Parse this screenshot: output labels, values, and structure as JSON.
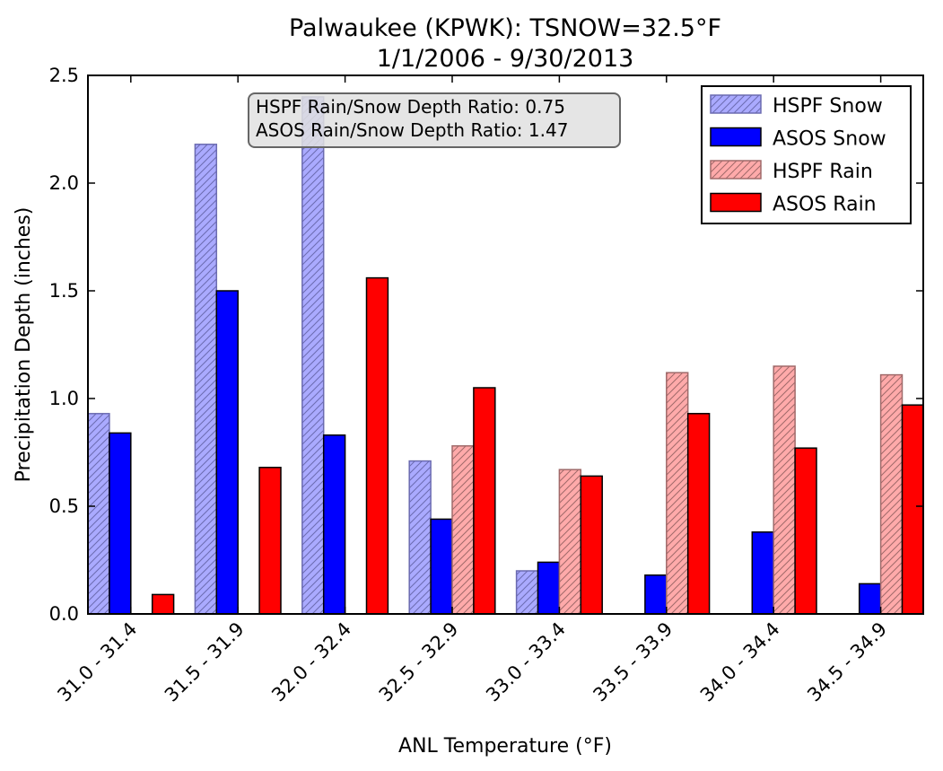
{
  "chart_data": {
    "type": "bar",
    "title": "Palwaukee (KPWK): TSNOW=32.5°F",
    "subtitle": "1/1/2006 - 9/30/2013",
    "xlabel": "ANL Temperature (°F)",
    "ylabel": "Precipitation Depth (inches)",
    "ylim": [
      0,
      2.5
    ],
    "yticks": [
      "0.0",
      "0.5",
      "1.0",
      "1.5",
      "2.0",
      "2.5"
    ],
    "categories": [
      "31.0 - 31.4",
      "31.5 - 31.9",
      "32.0 - 32.4",
      "32.5 - 32.9",
      "33.0 - 33.4",
      "33.5 - 33.9",
      "34.0 - 34.4",
      "34.5 - 34.9"
    ],
    "series": [
      {
        "name": "HSPF Snow",
        "color": "#aaaaff",
        "stroke": "#6b6bb0",
        "hatch": true,
        "values": [
          0.93,
          2.18,
          2.4,
          0.71,
          0.2,
          0,
          0,
          0
        ]
      },
      {
        "name": "ASOS Snow",
        "color": "#0000ff",
        "stroke": "#000000",
        "hatch": false,
        "values": [
          0.84,
          1.5,
          0.83,
          0.44,
          0.24,
          0.18,
          0.38,
          0.14
        ]
      },
      {
        "name": "HSPF Rain",
        "color": "#ffaaaa",
        "stroke": "#a06a6a",
        "hatch": true,
        "values": [
          0,
          0,
          0,
          0.78,
          0.67,
          1.12,
          1.15,
          1.11
        ]
      },
      {
        "name": "ASOS Rain",
        "color": "#ff0000",
        "stroke": "#000000",
        "hatch": false,
        "values": [
          0.09,
          0.68,
          1.56,
          1.05,
          0.64,
          0.93,
          0.77,
          0.97
        ]
      }
    ],
    "legend_position": "top-right",
    "annotation_lines": [
      "HSPF Rain/Snow Depth Ratio: 0.75",
      "ASOS Rain/Snow Depth Ratio: 1.47"
    ],
    "grid": false
  }
}
